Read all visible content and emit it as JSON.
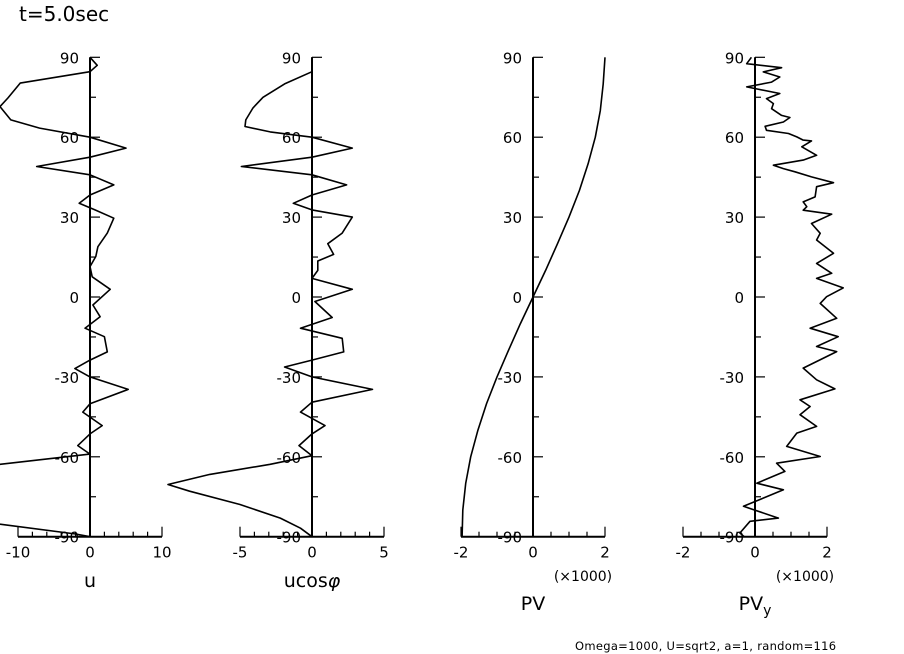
{
  "title": "t=5.0sec",
  "footer": "Omega=1000, U=sqrt2, a=1, random=116",
  "chart_data": [
    {
      "type": "line",
      "xlabel": "u",
      "xlabel_sub": "",
      "scale_note": "",
      "xlim": [
        -10,
        10
      ],
      "xticks": [
        -10,
        0,
        10
      ],
      "xtick_labels": [
        "-10",
        "0",
        "10"
      ],
      "x_minor_divisions": 5,
      "ylim": [
        -90,
        90
      ],
      "yticks": [
        -90,
        -60,
        -30,
        0,
        30,
        60,
        90
      ],
      "ytick_labels": [
        "-90",
        "-60",
        "-30",
        "0",
        "30",
        "60",
        "90"
      ],
      "lat": [
        90,
        87,
        84.6,
        80.3,
        74.7,
        71.5,
        66.5,
        63.4,
        60,
        55.9,
        52.5,
        49,
        45.9,
        42.1,
        38.3,
        35.2,
        32.7,
        29.6,
        24,
        18.9,
        15.2,
        11.4,
        7.6,
        2.9,
        -3,
        -7.4,
        -11.7,
        -14.9,
        -20.6,
        -23.7,
        -26.9,
        -30,
        -34.7,
        -40.1,
        -43.2,
        -48.3,
        -51.4,
        -55.8,
        -59,
        -62.8,
        -70,
        -80,
        -85.3,
        -89,
        -90
      ],
      "values": [
        0,
        1,
        0,
        -9.7,
        -11.4,
        -12.5,
        -11,
        -7,
        0,
        5,
        0,
        -7.4,
        0,
        3.3,
        0,
        -1.5,
        0.7,
        3.3,
        2.4,
        1.1,
        0.8,
        0,
        0.3,
        2.8,
        0.4,
        1.4,
        -0.7,
        2,
        2.4,
        0,
        -2.1,
        0,
        5.3,
        0,
        -1,
        1.7,
        0,
        -1.7,
        0,
        -12.5,
        -17,
        -16,
        -12.5,
        -2,
        0
      ]
    },
    {
      "type": "line",
      "xlabel": "ucos",
      "xlabel_sub": "φ",
      "scale_note": "",
      "xlim": [
        -5,
        5
      ],
      "xticks": [
        -5,
        0,
        5
      ],
      "xtick_labels": [
        "-5",
        "0",
        "5"
      ],
      "x_minor_divisions": 5,
      "ylim": [
        -90,
        90
      ],
      "yticks": [
        -90,
        -60,
        -30,
        0,
        30,
        60,
        90
      ],
      "ytick_labels": [
        "-90",
        "-60",
        "-30",
        "0",
        "30",
        "60",
        "90"
      ],
      "lat": [
        90,
        84.6,
        80,
        75,
        71,
        66.5,
        64,
        62,
        60,
        55.9,
        52.5,
        49,
        45.9,
        42.1,
        38.3,
        35.2,
        32.7,
        30,
        24,
        20,
        16,
        13.5,
        10,
        7,
        2.9,
        -1.7,
        -7.7,
        -11.7,
        -15.5,
        -20.6,
        -23.7,
        -26.3,
        -30,
        -34.7,
        -39.5,
        -43.2,
        -48.3,
        -51.4,
        -55.8,
        -59.6,
        -62.8,
        -66.6,
        -70.4,
        -72.9,
        -77.9,
        -83,
        -86.8,
        -90
      ],
      "values": [
        0,
        0,
        -1.9,
        -3.4,
        -4.1,
        -4.6,
        -4.65,
        -2.9,
        0,
        2.8,
        0,
        -4.9,
        0,
        2.4,
        0,
        -1.3,
        0,
        2.8,
        2.1,
        1.1,
        1.5,
        0.4,
        0.4,
        0,
        2.8,
        0.2,
        1.4,
        -0.8,
        2.1,
        2.2,
        0,
        -1.9,
        0,
        4.2,
        0,
        -0.8,
        0.9,
        0,
        -0.9,
        0,
        -2.9,
        -7.1,
        -10,
        -8.5,
        -5,
        -2.2,
        -0.8,
        0
      ]
    },
    {
      "type": "line",
      "xlabel": "PV",
      "xlabel_sub": "",
      "scale_note": "(×1000)",
      "xlim": [
        -2,
        2
      ],
      "xticks": [
        -2,
        0,
        2
      ],
      "xtick_labels": [
        "-2",
        "0",
        "2"
      ],
      "x_minor_divisions": 4,
      "ylim": [
        -90,
        90
      ],
      "yticks": [
        -90,
        -60,
        -30,
        0,
        30,
        60,
        90
      ],
      "ytick_labels": [
        "-90",
        "-60",
        "-30",
        "0",
        "30",
        "60",
        "90"
      ],
      "lat": [
        -90,
        -80,
        -70,
        -60,
        -50,
        -40,
        -30,
        -20,
        -10,
        0,
        10,
        20,
        30,
        40,
        50,
        60,
        70,
        80,
        90
      ],
      "values": [
        -1.97,
        -1.95,
        -1.87,
        -1.73,
        -1.53,
        -1.29,
        -1.0,
        -0.68,
        -0.35,
        0,
        0.35,
        0.68,
        1.0,
        1.29,
        1.53,
        1.73,
        1.87,
        1.95,
        2.0
      ]
    },
    {
      "type": "line",
      "xlabel": "PV",
      "xlabel_sub": "y",
      "scale_note": "(×1000)",
      "xlim": [
        -2,
        2
      ],
      "xticks": [
        -2,
        0,
        2
      ],
      "xtick_labels": [
        "-2",
        "0",
        "2"
      ],
      "x_minor_divisions": 4,
      "ylim": [
        -90,
        90
      ],
      "yticks": [
        -90,
        -60,
        -30,
        0,
        30,
        60,
        90
      ],
      "ytick_labels": [
        "-90",
        "-60",
        "-30",
        "0",
        "30",
        "60",
        "90"
      ],
      "lat": [
        90,
        87.6,
        86.1,
        84.5,
        82.6,
        80.7,
        78.9,
        76.4,
        74.5,
        72.6,
        70.7,
        68.2,
        67.4,
        65.7,
        64.1,
        62.6,
        61.4,
        60.1,
        58.9,
        58.6,
        56.4,
        53.2,
        51.4,
        49.5,
        48.2,
        47.0,
        45.1,
        42.9,
        41.4,
        37.6,
        35.7,
        33.9,
        32.6,
        31.1,
        27.6,
        23.9,
        21.4,
        16.4,
        12.6,
        8.9,
        7.0,
        3.4,
        0.1,
        -2.4,
        -8.0,
        -11.7,
        -14.9,
        -18.6,
        -20.5,
        -26.7,
        -31.1,
        -34.5,
        -38.6,
        -41.1,
        -44.2,
        -48.6,
        -51.1,
        -56.1,
        -59.9,
        -62.4,
        -65.5,
        -69.9,
        -72.4,
        -78.6,
        -83.0,
        -84.2,
        -88.6,
        -90
      ],
      "values": [
        -0.1,
        -0.23,
        0.74,
        0.23,
        0.69,
        0.46,
        -0.23,
        0.69,
        0.32,
        0.51,
        0.46,
        0.74,
        0.97,
        0.79,
        0.28,
        0.32,
        0.93,
        1.16,
        1.34,
        1.57,
        1.3,
        1.71,
        1.34,
        0.51,
        0.79,
        1.11,
        1.57,
        2.18,
        1.71,
        1.67,
        1.34,
        1.44,
        1.34,
        2.13,
        1.57,
        1.81,
        1.71,
        2.18,
        1.71,
        2.13,
        1.71,
        2.45,
        1.99,
        1.81,
        2.27,
        1.53,
        2.31,
        1.71,
        2.27,
        1.34,
        1.71,
        2.22,
        1.25,
        1.53,
        1.25,
        1.71,
        1.16,
        0.88,
        1.81,
        0.6,
        0.83,
        0.05,
        0.79,
        -0.32,
        0.65,
        -0.14,
        -0.42,
        -0.3
      ]
    }
  ]
}
